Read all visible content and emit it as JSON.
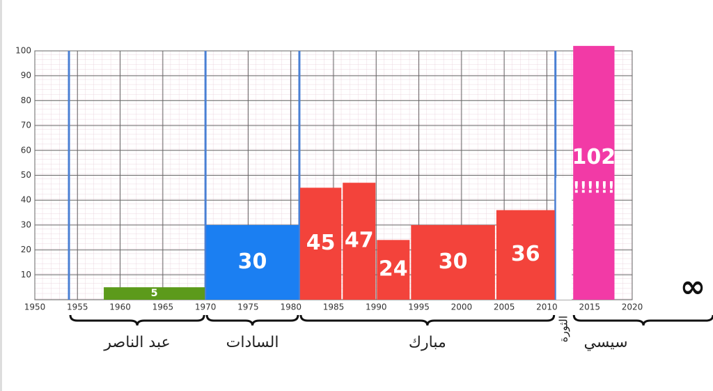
{
  "chart_data": {
    "type": "span-bar",
    "xlim": [
      1950,
      2020
    ],
    "xticks": [
      1950,
      1955,
      1960,
      1965,
      1970,
      1975,
      1980,
      1985,
      1990,
      1995,
      2000,
      2005,
      2010,
      2015,
      2020
    ],
    "ylim": [
      0,
      100
    ],
    "yticks": [
      10,
      20,
      30,
      40,
      50,
      60,
      70,
      80,
      90,
      100
    ],
    "grid": true,
    "bars": [
      {
        "start": 1958,
        "end": 1970,
        "value": 5,
        "color": "#5c9a1b"
      },
      {
        "start": 1970,
        "end": 1981,
        "value": 30,
        "color": "#1b7ff2"
      },
      {
        "start": 1981,
        "end": 1986,
        "value": 45,
        "color": "#f3433b"
      },
      {
        "start": 1986,
        "end": 1990,
        "value": 47,
        "color": "#f3433b"
      },
      {
        "start": 1990,
        "end": 1994,
        "value": 24,
        "color": "#f3433b"
      },
      {
        "start": 1994,
        "end": 2004,
        "value": 30,
        "color": "#f3433b"
      },
      {
        "start": 2004,
        "end": 2011,
        "value": 36,
        "color": "#f3433b"
      },
      {
        "start": 2011,
        "end": 2013,
        "value": 49,
        "color": "#ffffff"
      },
      {
        "start": 2013,
        "end": 2018,
        "value": 102,
        "color": "#f23aa6",
        "annotation": "!!!!!!"
      }
    ],
    "period_lines": [
      1954,
      1970,
      1981,
      2011
    ],
    "periods": [
      {
        "name": "عبد الناصر",
        "start": 1954,
        "end": 1970
      },
      {
        "name": "السادات",
        "start": 1970,
        "end": 1981
      },
      {
        "name": "مبارك",
        "start": 1981,
        "end": 2011
      },
      {
        "name": "الثورة",
        "start": 2011,
        "end": 2013,
        "vertical": true
      },
      {
        "name": "سيسي",
        "start": 2013,
        "end": null
      }
    ],
    "infinity_label": "∞"
  }
}
